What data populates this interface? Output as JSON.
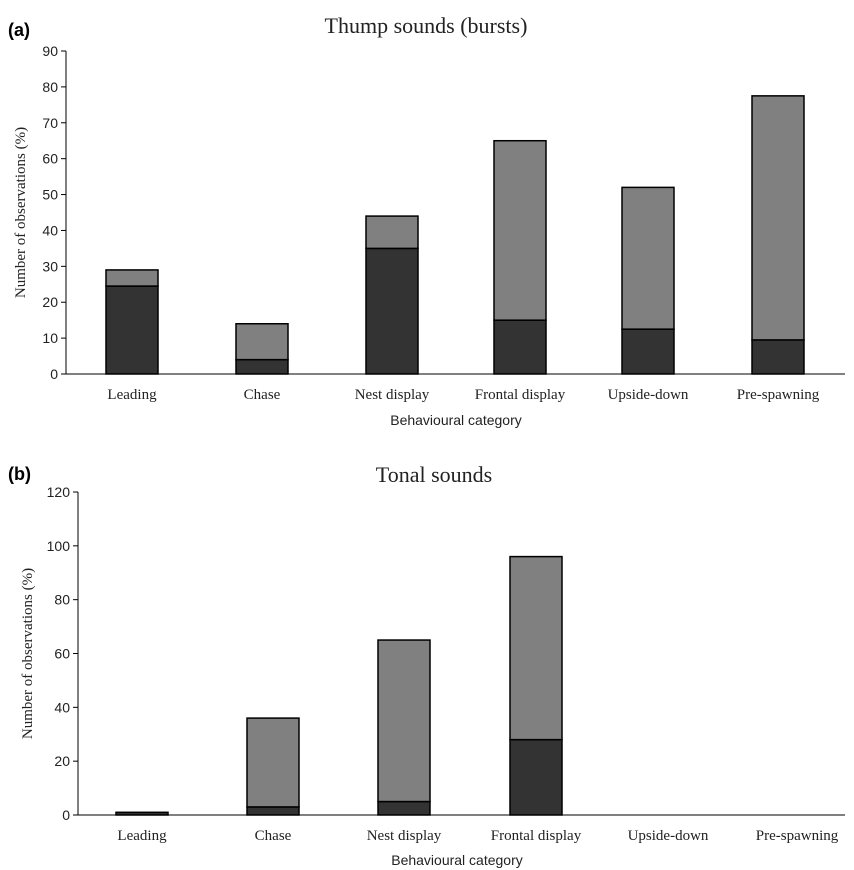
{
  "chart_data": [
    {
      "panel_label": "(a)",
      "type": "bar",
      "stacked": true,
      "title": "Thump sounds (bursts)",
      "xlabel": "Behavioural category",
      "ylabel": "Number of observations (%)",
      "ylim": [
        0,
        90
      ],
      "yticks": [
        0,
        10,
        20,
        30,
        40,
        50,
        60,
        70,
        80,
        90
      ],
      "categories": [
        "Leading",
        "Chase",
        "Nest display",
        "Frontal display",
        "Upside-down",
        "Pre-spawning"
      ],
      "series": [
        {
          "color": "#333333",
          "values": [
            24.5,
            4,
            35,
            15,
            12.5,
            9.5
          ]
        },
        {
          "color": "#808080",
          "values": [
            4.5,
            10,
            9,
            50,
            39.5,
            68
          ]
        }
      ],
      "grid": false,
      "legend": "none"
    },
    {
      "panel_label": "(b)",
      "type": "bar",
      "stacked": true,
      "title": "Tonal sounds",
      "xlabel": "Behavioural category",
      "ylabel": "Number of observations (%)",
      "ylim": [
        0,
        120
      ],
      "yticks": [
        0,
        20,
        40,
        60,
        80,
        100,
        120
      ],
      "categories": [
        "Leading",
        "Chase",
        "Nest display",
        "Frontal display",
        "Upside-down",
        "Pre-spawning"
      ],
      "series": [
        {
          "color": "#333333",
          "values": [
            1,
            3,
            5,
            28,
            0,
            0
          ]
        },
        {
          "color": "#808080",
          "values": [
            0,
            33,
            60,
            68,
            0,
            0
          ]
        }
      ],
      "grid": false,
      "legend": "none"
    }
  ]
}
